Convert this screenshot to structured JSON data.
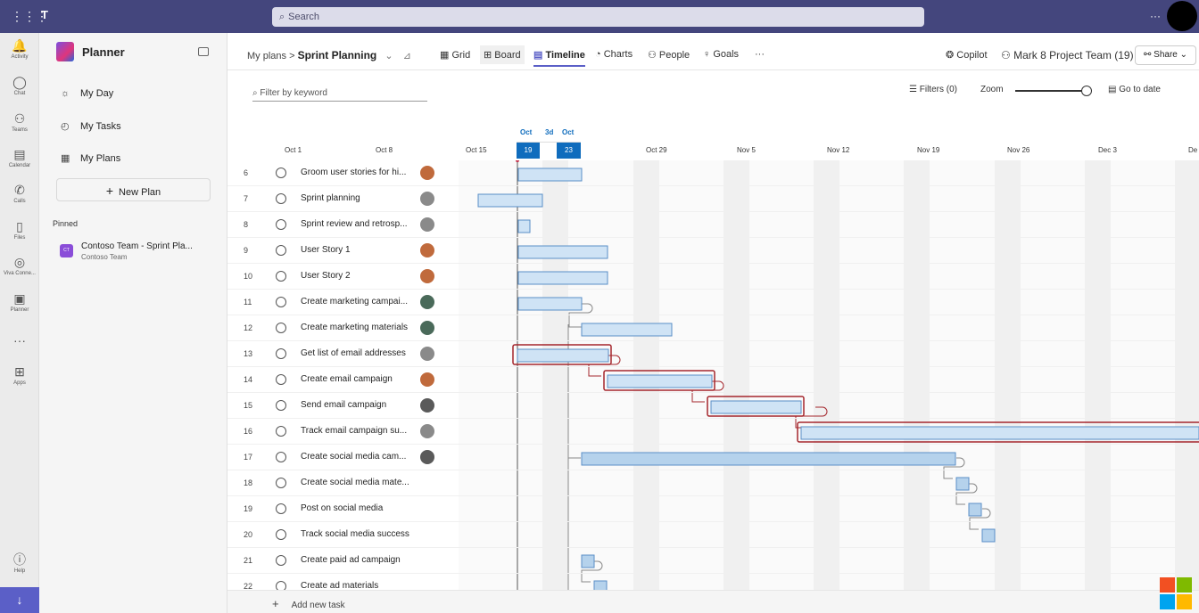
{
  "topbar": {
    "search_placeholder": "Search",
    "more": "···"
  },
  "rail": [
    {
      "icon": "bell-icon",
      "label": "Activity",
      "glyph": "🔔"
    },
    {
      "icon": "chat-icon",
      "label": "Chat",
      "glyph": "💬"
    },
    {
      "icon": "teams-icon",
      "label": "Teams",
      "glyph": "👥"
    },
    {
      "icon": "calendar-icon",
      "label": "Calendar",
      "glyph": "📅"
    },
    {
      "icon": "calls-icon",
      "label": "Calls",
      "glyph": "📞"
    },
    {
      "icon": "files-icon",
      "label": "Files",
      "glyph": "📄"
    },
    {
      "icon": "viva-icon",
      "label": "Viva Conne...",
      "glyph": "◎"
    },
    {
      "icon": "planner-icon",
      "label": "Planner",
      "glyph": "▣"
    },
    {
      "icon": "more-icon",
      "label": "",
      "glyph": "···"
    },
    {
      "icon": "apps-icon",
      "label": "Apps",
      "glyph": "⊞"
    },
    {
      "icon": "help-icon",
      "label": "Help",
      "glyph": "?"
    }
  ],
  "sidebar": {
    "title": "Planner",
    "nav": [
      {
        "label": "My Day",
        "glyph": "☼"
      },
      {
        "label": "My Tasks",
        "glyph": "◴"
      },
      {
        "label": "My Plans",
        "glyph": "▦"
      }
    ],
    "new_plan": "New Plan",
    "pinned_label": "Pinned",
    "pinned": {
      "badge": "CT",
      "title": "Contoso Team - Sprint Pla...",
      "subtitle": "Contoso Team"
    }
  },
  "header": {
    "crumb_root": "My plans",
    "crumb_sep": ">",
    "plan_name": "Sprint Planning",
    "tabs": [
      "Grid",
      "Board",
      "Timeline",
      "Charts",
      "People",
      "Goals"
    ],
    "more": "···",
    "copilot": "Copilot",
    "team": "Mark 8 Project Team (19)",
    "share": "Share"
  },
  "toolbar": {
    "filter_placeholder": "Filter by keyword",
    "filters": "Filters (0)",
    "zoom": "Zoom",
    "goto": "Go to date",
    "zoom_level": 0.93
  },
  "timeline": {
    "selection": {
      "start_month": "Oct",
      "duration": "3d",
      "end_month": "Oct",
      "start_day": "19",
      "end_day": "23"
    },
    "dates": [
      "Oct 1",
      "Oct 8",
      "Oct 15",
      "Oct 29",
      "Nov 5",
      "Nov 12",
      "Nov 19",
      "Nov 26",
      "Dec 3",
      "De"
    ]
  },
  "tasks": [
    {
      "num": "6",
      "name": "Groom user stories for hi..."
    },
    {
      "num": "7",
      "name": "Sprint planning"
    },
    {
      "num": "8",
      "name": "Sprint review and retrosp..."
    },
    {
      "num": "9",
      "name": "User Story 1"
    },
    {
      "num": "10",
      "name": "User Story 2"
    },
    {
      "num": "11",
      "name": "Create marketing campai..."
    },
    {
      "num": "12",
      "name": "Create marketing materials"
    },
    {
      "num": "13",
      "name": "Get list of email addresses"
    },
    {
      "num": "14",
      "name": "Create email campaign"
    },
    {
      "num": "15",
      "name": "Send email campaign"
    },
    {
      "num": "16",
      "name": "Track email campaign su..."
    },
    {
      "num": "17",
      "name": "Create social media cam..."
    },
    {
      "num": "18",
      "name": "Create social media mate..."
    },
    {
      "num": "19",
      "name": "Post on social media"
    },
    {
      "num": "20",
      "name": "Track social media success"
    },
    {
      "num": "21",
      "name": "Create paid ad campaign"
    },
    {
      "num": "22",
      "name": "Create ad materials"
    }
  ],
  "add_task": "Add new task"
}
